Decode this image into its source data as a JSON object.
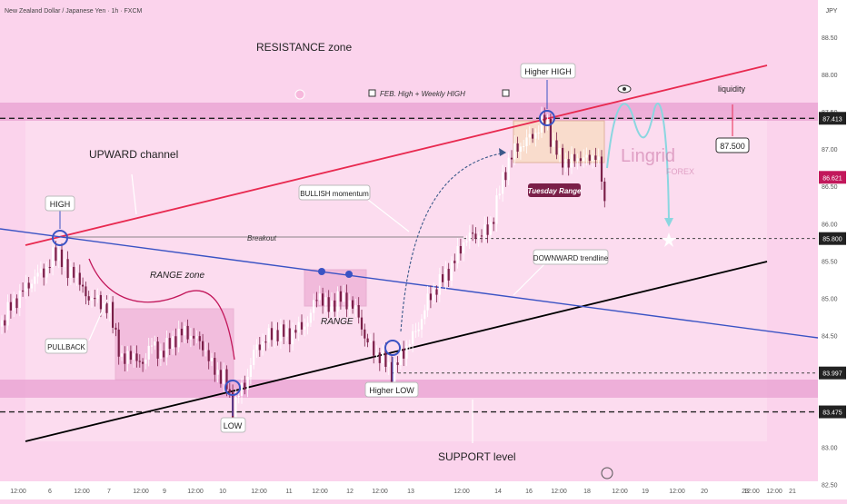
{
  "header": {
    "symbol_title": "New Zealand Dollar / Japanese Yen · 1h · FXCM",
    "currency": "JPY"
  },
  "chart_data": {
    "type": "candlestick",
    "title": "New Zealand Dollar / Japanese Yen · 1h · FXCM",
    "y_axis": {
      "range": [
        82.3,
        89.0
      ],
      "ticks": [
        88.5,
        88.0,
        87.5,
        87.0,
        86.5,
        86.0,
        85.5,
        85.0,
        84.5,
        84.0,
        83.5,
        83.0,
        82.5
      ]
    },
    "price_tags": [
      {
        "name": "tag-87413",
        "value": 87.413,
        "label": "87.413"
      },
      {
        "name": "tag-86621",
        "value": 86.621,
        "label": "86.621"
      },
      {
        "name": "tag-85800",
        "value": 85.8,
        "label": "85.800"
      },
      {
        "name": "tag-83997",
        "value": 83.997,
        "label": "83.997"
      },
      {
        "name": "tag-83475",
        "value": 83.475,
        "label": "83.475"
      }
    ],
    "x_axis_labels": [
      "12:00",
      "6",
      "12:00",
      "7",
      "12:00",
      "9",
      "12:00",
      "10",
      "12:00",
      "11",
      "12:00",
      "12",
      "12:00",
      "13",
      "12:00",
      "14",
      "16",
      "12:00",
      "18",
      "12:00",
      "19",
      "12:00",
      "20",
      "12:00",
      "21",
      "23",
      "12:00"
    ],
    "ohlc_path": [
      [
        0,
        84.62
      ],
      [
        10,
        84.85
      ],
      [
        22,
        85.05
      ],
      [
        40,
        85.3
      ],
      [
        52,
        85.4
      ],
      [
        58,
        85.55
      ],
      [
        66,
        85.62
      ],
      [
        74,
        85.3
      ],
      [
        82,
        85.4
      ],
      [
        90,
        85.1
      ],
      [
        100,
        85.0
      ],
      [
        110,
        84.95
      ],
      [
        120,
        84.85
      ],
      [
        128,
        84.5
      ],
      [
        135,
        84.1
      ],
      [
        145,
        84.3
      ],
      [
        155,
        84.05
      ],
      [
        165,
        84.4
      ],
      [
        175,
        84.25
      ],
      [
        185,
        84.35
      ],
      [
        195,
        84.5
      ],
      [
        205,
        84.55
      ],
      [
        215,
        84.45
      ],
      [
        225,
        84.35
      ],
      [
        232,
        84.1
      ],
      [
        240,
        84.0
      ],
      [
        248,
        83.9
      ],
      [
        256,
        83.5
      ],
      [
        262,
        83.7
      ],
      [
        270,
        83.85
      ],
      [
        280,
        84.3
      ],
      [
        292,
        84.45
      ],
      [
        305,
        84.55
      ],
      [
        318,
        84.5
      ],
      [
        330,
        84.6
      ],
      [
        340,
        84.7
      ],
      [
        350,
        85.1
      ],
      [
        360,
        84.85
      ],
      [
        372,
        85.0
      ],
      [
        385,
        84.95
      ],
      [
        395,
        84.75
      ],
      [
        402,
        84.45
      ],
      [
        410,
        84.3
      ],
      [
        420,
        84.2
      ],
      [
        432,
        84.0
      ],
      [
        440,
        84.2
      ],
      [
        450,
        84.4
      ],
      [
        460,
        84.6
      ],
      [
        470,
        84.95
      ],
      [
        480,
        85.15
      ],
      [
        490,
        85.3
      ],
      [
        500,
        85.5
      ],
      [
        512,
        85.8
      ],
      [
        525,
        85.85
      ],
      [
        538,
        85.9
      ],
      [
        545,
        86.2
      ],
      [
        552,
        86.55
      ],
      [
        560,
        86.85
      ],
      [
        568,
        87.0
      ],
      [
        578,
        87.1
      ],
      [
        588,
        87.2
      ],
      [
        596,
        87.35
      ],
      [
        602,
        87.38
      ],
      [
        608,
        87.05
      ],
      [
        616,
        86.9
      ],
      [
        626,
        86.8
      ],
      [
        636,
        86.9
      ],
      [
        646,
        86.85
      ],
      [
        656,
        86.95
      ],
      [
        662,
        86.6
      ],
      [
        666,
        86.15
      ]
    ],
    "levels": [
      {
        "name": "resistance",
        "value": 87.413
      },
      {
        "name": "support",
        "value": 83.475
      },
      {
        "name": "breakout",
        "value": 85.8
      },
      {
        "name": "higher-low",
        "value": 83.997
      }
    ],
    "annotations": {
      "resistance": "RESISTANCE zone",
      "upward_channel": "UPWARD channel",
      "high": "HIGH",
      "pullback": "PULLBACK",
      "range_zone": "RANGE zone",
      "range": "RANGE",
      "low": "LOW",
      "higher_low": "Higher LOW",
      "higher_high": "Higher HIGH",
      "bullish_momentum": "BULLISH momentum",
      "breakout": "Breakout",
      "downward_trendline": "DOWNWARD trendline",
      "support": "SUPPORT level",
      "feb_high": "FEB. High + Weekly HIGH",
      "tuesday_range": "Tuesday Range",
      "liquidity": "liquidity",
      "target": "87.500",
      "brand_top": "Lingrid",
      "brand_bottom": "FOREX"
    }
  },
  "colors": {
    "background": "#fbd3ec",
    "candle_up": "#ffffff",
    "candle_down": "#7a1f48",
    "channel_upper": "#e8294f",
    "channel_lower": "#000000",
    "downward_trendline": "#3a53c4",
    "axis_bg": "#ffffff",
    "projection": "#8bd6e0"
  }
}
